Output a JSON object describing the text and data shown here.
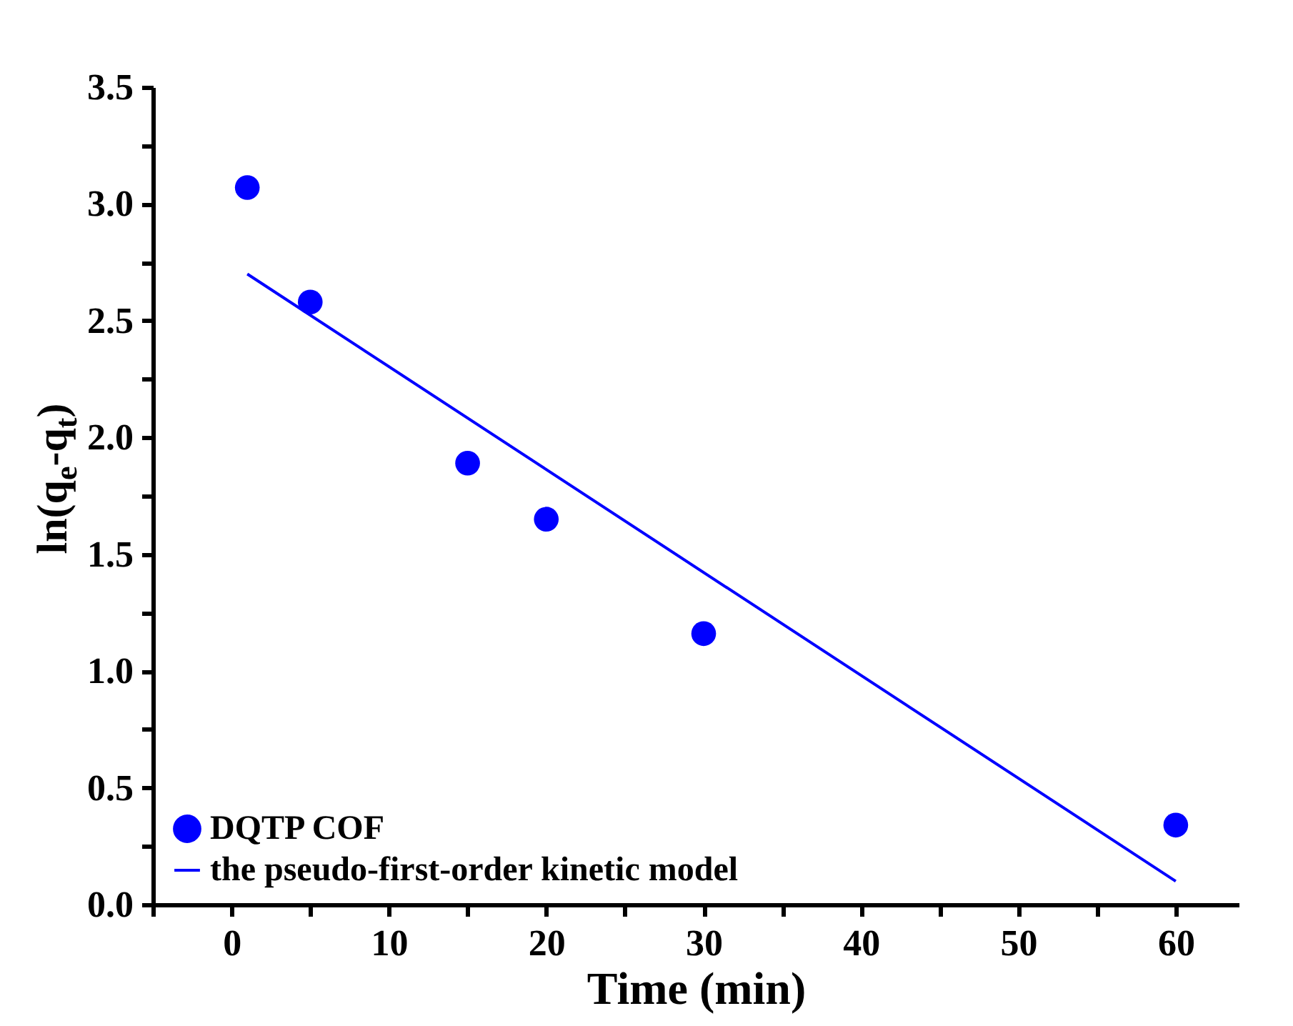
{
  "chart_data": {
    "type": "scatter",
    "xlabel": "Time (min)",
    "ylabel": "ln(q$_{e}$-q$_{t}$)",
    "xlim": [
      -5,
      64
    ],
    "xticks": [
      {
        "value": -5,
        "label": null
      },
      0,
      {
        "value": 5,
        "label": null
      },
      10,
      {
        "value": 15,
        "label": null
      },
      20,
      {
        "value": 25,
        "label": null
      },
      30,
      {
        "value": 35,
        "label": null
      },
      40,
      {
        "value": 45,
        "label": null
      },
      50,
      {
        "value": 55,
        "label": null
      },
      60
    ],
    "ylim": [
      0,
      3.5
    ],
    "yticks": [
      "0.0",
      {
        "value": 0.25,
        "label": null
      },
      {
        "value": 0.5,
        "label": "0.5"
      },
      {
        "value": 0.75,
        "label": null
      },
      {
        "value": 1,
        "label": "1.0"
      },
      {
        "value": 1.25,
        "label": null
      },
      {
        "value": 1.5,
        "label": "1.5"
      },
      {
        "value": 1.75,
        "label": null
      },
      {
        "value": 2,
        "label": "2.0"
      },
      {
        "value": 2.25,
        "label": null
      },
      {
        "value": 2.5,
        "label": "2.5"
      },
      {
        "value": 2.75,
        "label": null
      },
      {
        "value": 3,
        "label": "3.0"
      },
      {
        "value": 3.25,
        "label": null
      },
      {
        "value": 3.5,
        "label": "3.5"
      }
    ],
    "legend": "bottom left",
    "grid": false,
    "series": [
      {
        "name": "DQTP COF",
        "marker": "circle",
        "color": "#0000ff",
        "x": [
          1,
          5,
          15,
          20,
          30,
          60
        ],
        "values": [
          3.07,
          2.58,
          1.89,
          1.65,
          1.16,
          0.34
        ]
      },
      {
        "name": "the pseudo-first-order kinetic model",
        "type": "line",
        "marker": "none",
        "color": "#0000ff",
        "x": [
          1,
          60
        ],
        "values": [
          2.7,
          0.1
        ]
      }
    ]
  }
}
